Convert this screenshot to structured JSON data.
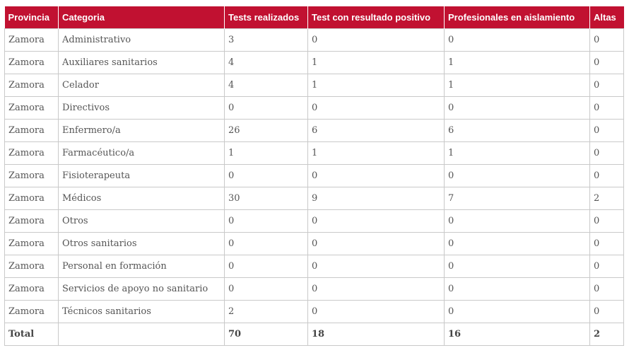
{
  "table": {
    "headers": [
      "Provincia",
      "Categoria",
      "Tests realizados",
      "Test con resultado positivo",
      "Profesionales en aislamiento",
      "Altas"
    ],
    "rows": [
      [
        "Zamora",
        "Administrativo",
        "3",
        "0",
        "0",
        "0"
      ],
      [
        "Zamora",
        "Auxiliares sanitarios",
        "4",
        "1",
        "1",
        "0"
      ],
      [
        "Zamora",
        "Celador",
        "4",
        "1",
        "1",
        "0"
      ],
      [
        "Zamora",
        "Directivos",
        "0",
        "0",
        "0",
        "0"
      ],
      [
        "Zamora",
        "Enfermero/a",
        "26",
        "6",
        "6",
        "0"
      ],
      [
        "Zamora",
        "Farmacéutico/a",
        "1",
        "1",
        "1",
        "0"
      ],
      [
        "Zamora",
        "Fisioterapeuta",
        "0",
        "0",
        "0",
        "0"
      ],
      [
        "Zamora",
        "Médicos",
        "30",
        "9",
        "7",
        "2"
      ],
      [
        "Zamora",
        "Otros",
        "0",
        "0",
        "0",
        "0"
      ],
      [
        "Zamora",
        "Otros sanitarios",
        "0",
        "0",
        "0",
        "0"
      ],
      [
        "Zamora",
        "Personal en formación",
        "0",
        "0",
        "0",
        "0"
      ],
      [
        "Zamora",
        "Servicios de apoyo no sanitario",
        "0",
        "0",
        "0",
        "0"
      ],
      [
        "Zamora",
        "Técnicos sanitarios",
        "2",
        "0",
        "0",
        "0"
      ]
    ],
    "total": [
      "Total",
      "",
      "70",
      "18",
      "16",
      "2"
    ]
  },
  "colors": {
    "header_bg": "#c11131",
    "header_text": "#ffffff",
    "border": "#c9c9c9",
    "cell_text": "#555555"
  }
}
